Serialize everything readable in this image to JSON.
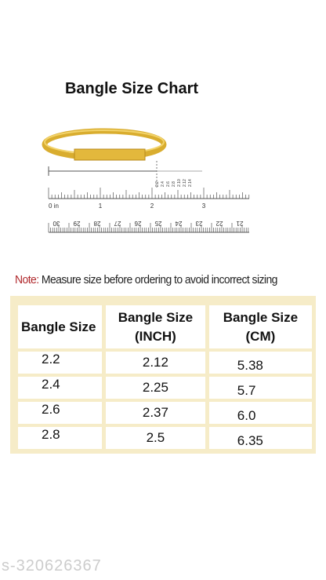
{
  "header": {
    "title": "Bangle Size Chart"
  },
  "ruler": {
    "inch_labels": [
      "0 in",
      "1",
      "2",
      "3"
    ],
    "size_labels": [
      "2.2",
      "2.4",
      "2.6",
      "2.8",
      "2.10",
      "2.12",
      "2.14"
    ],
    "cm_labels": [
      "30",
      "29",
      "28",
      "27",
      "26",
      "25",
      "24",
      "23",
      "22",
      "21"
    ]
  },
  "note": {
    "label": "Note:",
    "text": "Measure size before ordering to avoid incorrect sizing"
  },
  "table": {
    "columns": [
      "Bangle Size",
      "Bangle Size (INCH)",
      "Bangle Size (CM)"
    ],
    "rows": [
      [
        "2.2",
        "2.12",
        "5.38"
      ],
      [
        "2.4",
        "2.25",
        "5.7"
      ],
      [
        "2.6",
        "2.37",
        "6.0"
      ],
      [
        "2.8",
        "2.5",
        "6.35"
      ]
    ]
  },
  "watermark": "s-320626367"
}
